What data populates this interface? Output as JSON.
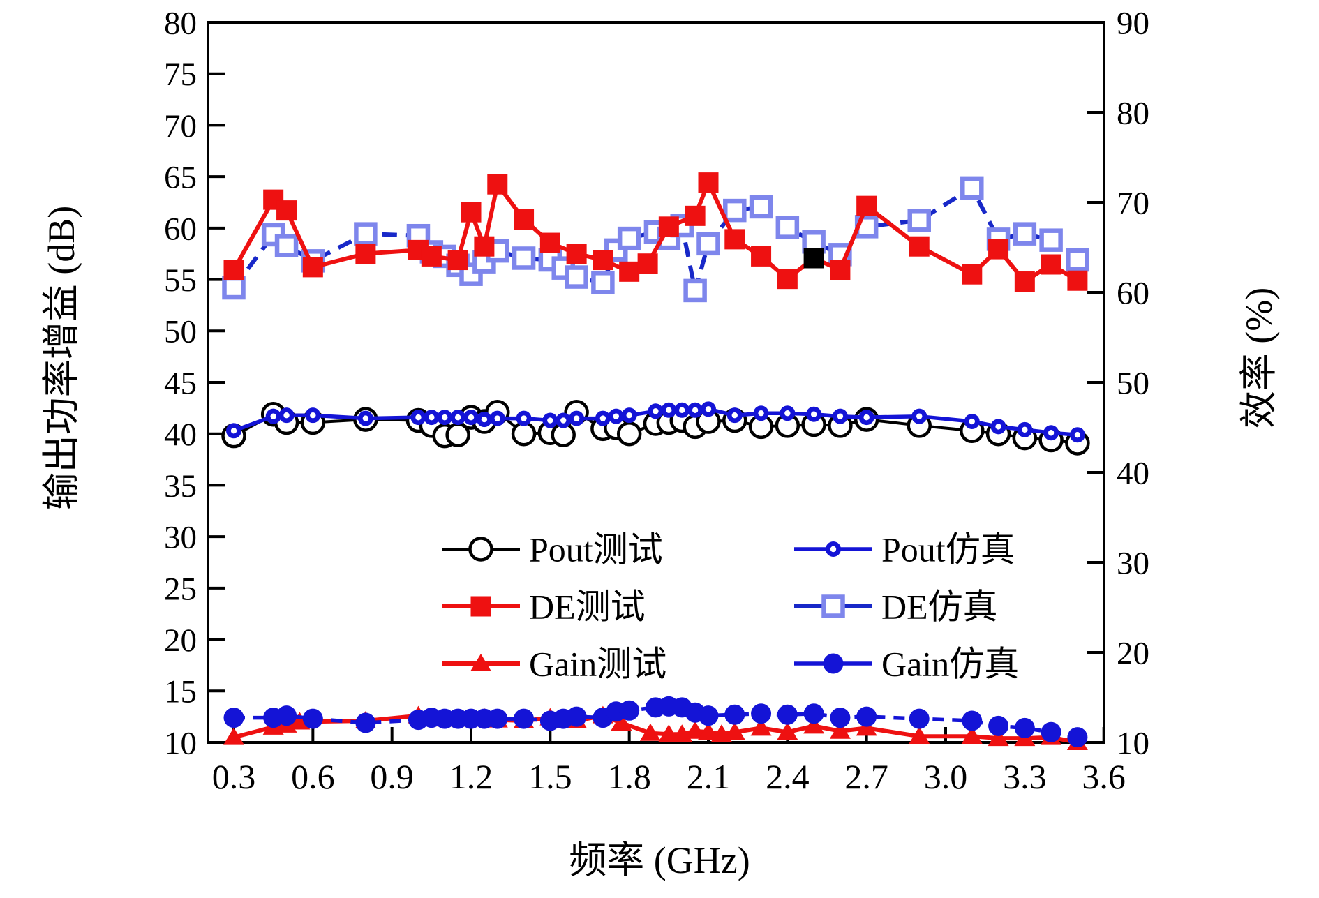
{
  "figure": {
    "xlabel": "频率 (GHz)",
    "ylabel_left": "输出功率增益 (dB)",
    "ylabel_right": "效率 (%)"
  },
  "chart_data": {
    "type": "line",
    "title": "",
    "xlabel": "频率 (GHz)",
    "ylabel_left": "输出功率增益 (dB)",
    "ylabel_right": "效率 (%)",
    "x_range": [
      0.2,
      3.62
    ],
    "x_ticks": [
      0.3,
      0.6,
      0.9,
      1.2,
      1.5,
      1.8,
      2.1,
      2.4,
      2.7,
      3.0,
      3.3,
      3.6
    ],
    "y_left_range": [
      10,
      80
    ],
    "y_left_ticks": [
      10,
      15,
      20,
      25,
      30,
      35,
      40,
      45,
      50,
      55,
      60,
      65,
      70,
      75,
      80
    ],
    "y_right_range": [
      10,
      90
    ],
    "y_right_ticks": [
      10,
      20,
      30,
      40,
      50,
      60,
      70,
      80,
      90
    ],
    "grid": false,
    "legend_position": "inside-lower-center-two-columns",
    "colors": {
      "red": "#ee1111",
      "blue": "#1414d6",
      "navy_dashed": "#1828c8",
      "light_blue_square": "#7e86ec",
      "black": "#000000",
      "anomaly_black_square": "#000000"
    },
    "series": [
      {
        "key": "pout-test",
        "name": "Pout测试",
        "axis": "left",
        "color": "#000000",
        "line": "solid",
        "marker": "open-circle",
        "points": [
          [
            0.3,
            39.8
          ],
          [
            0.45,
            41.9
          ],
          [
            0.5,
            41.1
          ],
          [
            0.6,
            41.1
          ],
          [
            0.8,
            41.4
          ],
          [
            1.0,
            41.3
          ],
          [
            1.05,
            40.8
          ],
          [
            1.1,
            39.8
          ],
          [
            1.15,
            39.9
          ],
          [
            1.2,
            41.6
          ],
          [
            1.25,
            41.2
          ],
          [
            1.3,
            42.1
          ],
          [
            1.4,
            40.0
          ],
          [
            1.5,
            40.1
          ],
          [
            1.55,
            39.9
          ],
          [
            1.6,
            42.1
          ],
          [
            1.7,
            40.5
          ],
          [
            1.75,
            40.6
          ],
          [
            1.8,
            40.0
          ],
          [
            1.9,
            41.0
          ],
          [
            1.95,
            41.1
          ],
          [
            2.0,
            41.3
          ],
          [
            2.05,
            40.7
          ],
          [
            2.1,
            41.2
          ],
          [
            2.2,
            41.3
          ],
          [
            2.3,
            40.7
          ],
          [
            2.4,
            40.8
          ],
          [
            2.5,
            40.9
          ],
          [
            2.6,
            40.8
          ],
          [
            2.7,
            41.4
          ],
          [
            2.9,
            40.8
          ],
          [
            3.1,
            40.3
          ],
          [
            3.2,
            40.0
          ],
          [
            3.3,
            39.6
          ],
          [
            3.4,
            39.4
          ],
          [
            3.5,
            39.1
          ]
        ]
      },
      {
        "key": "pout-sim",
        "name": "Pout仿真",
        "axis": "left",
        "color": "#1414d6",
        "line": "solid",
        "marker": "dot-circle",
        "points": [
          [
            0.3,
            40.3
          ],
          [
            0.45,
            41.7
          ],
          [
            0.5,
            41.8
          ],
          [
            0.6,
            41.8
          ],
          [
            0.8,
            41.5
          ],
          [
            1.0,
            41.6
          ],
          [
            1.05,
            41.6
          ],
          [
            1.1,
            41.6
          ],
          [
            1.15,
            41.6
          ],
          [
            1.2,
            41.6
          ],
          [
            1.25,
            41.4
          ],
          [
            1.3,
            41.5
          ],
          [
            1.4,
            41.5
          ],
          [
            1.5,
            41.3
          ],
          [
            1.55,
            41.3
          ],
          [
            1.6,
            41.5
          ],
          [
            1.7,
            41.5
          ],
          [
            1.75,
            41.7
          ],
          [
            1.8,
            41.8
          ],
          [
            1.9,
            42.2
          ],
          [
            1.95,
            42.3
          ],
          [
            2.0,
            42.3
          ],
          [
            2.05,
            42.3
          ],
          [
            2.1,
            42.4
          ],
          [
            2.2,
            41.8
          ],
          [
            2.3,
            42.0
          ],
          [
            2.4,
            42.0
          ],
          [
            2.5,
            41.9
          ],
          [
            2.6,
            41.7
          ],
          [
            2.7,
            41.6
          ],
          [
            2.9,
            41.7
          ],
          [
            3.1,
            41.2
          ],
          [
            3.2,
            40.7
          ],
          [
            3.3,
            40.4
          ],
          [
            3.4,
            40.1
          ],
          [
            3.5,
            39.9
          ]
        ]
      },
      {
        "key": "de-test",
        "name": "DE测试",
        "axis": "right",
        "color": "#ee1111",
        "line": "solid",
        "marker": "filled-square",
        "points": [
          [
            0.3,
            62.5
          ],
          [
            0.45,
            70.3
          ],
          [
            0.5,
            69.1
          ],
          [
            0.6,
            62.8
          ],
          [
            0.8,
            64.3
          ],
          [
            1.0,
            64.7
          ],
          [
            1.05,
            64.0
          ],
          [
            1.15,
            63.6
          ],
          [
            1.2,
            68.9
          ],
          [
            1.25,
            65.1
          ],
          [
            1.3,
            72.0
          ],
          [
            1.4,
            68.1
          ],
          [
            1.5,
            65.5
          ],
          [
            1.6,
            64.3
          ],
          [
            1.7,
            63.6
          ],
          [
            1.8,
            62.3
          ],
          [
            1.87,
            63.2
          ],
          [
            1.95,
            67.3
          ],
          [
            2.05,
            68.5
          ],
          [
            2.1,
            72.2
          ],
          [
            2.2,
            65.9
          ],
          [
            2.3,
            64.0
          ],
          [
            2.4,
            61.5
          ],
          [
            2.5,
            63.8
          ],
          [
            2.6,
            62.5
          ],
          [
            2.7,
            69.6
          ],
          [
            2.9,
            65.1
          ],
          [
            3.1,
            62.0
          ],
          [
            3.2,
            64.8
          ],
          [
            3.3,
            61.2
          ],
          [
            3.4,
            63.1
          ],
          [
            3.5,
            61.3
          ]
        ]
      },
      {
        "key": "de-sim",
        "name": "DE仿真",
        "axis": "right",
        "color": "#1828c8",
        "marker_color": "#7e86ec",
        "line": "dashed",
        "marker": "open-square",
        "points": [
          [
            0.3,
            60.5
          ],
          [
            0.45,
            66.4
          ],
          [
            0.5,
            65.2
          ],
          [
            0.6,
            63.5
          ],
          [
            0.8,
            66.5
          ],
          [
            1.0,
            66.3
          ],
          [
            1.05,
            64.5
          ],
          [
            1.1,
            64.0
          ],
          [
            1.15,
            63.0
          ],
          [
            1.2,
            62.0
          ],
          [
            1.25,
            63.4
          ],
          [
            1.3,
            64.6
          ],
          [
            1.4,
            63.8
          ],
          [
            1.5,
            63.6
          ],
          [
            1.55,
            62.7
          ],
          [
            1.6,
            61.7
          ],
          [
            1.7,
            61.1
          ],
          [
            1.75,
            64.7
          ],
          [
            1.8,
            66.0
          ],
          [
            1.9,
            66.7
          ],
          [
            1.95,
            66.0
          ],
          [
            2.0,
            67.4
          ],
          [
            2.05,
            60.2
          ],
          [
            2.1,
            65.4
          ],
          [
            2.2,
            69.1
          ],
          [
            2.3,
            69.5
          ],
          [
            2.4,
            67.2
          ],
          [
            2.5,
            65.6
          ],
          [
            2.6,
            64.2
          ],
          [
            2.7,
            67.3
          ],
          [
            2.9,
            68.0
          ],
          [
            3.1,
            71.6
          ],
          [
            3.2,
            65.9
          ],
          [
            3.3,
            66.5
          ],
          [
            3.4,
            65.8
          ],
          [
            3.5,
            63.6
          ]
        ]
      },
      {
        "key": "gain-test",
        "name": "Gain测试",
        "axis": "left",
        "color": "#ee1111",
        "line": "solid",
        "marker": "filled-triangle",
        "points": [
          [
            0.3,
            10.5
          ],
          [
            0.45,
            11.5
          ],
          [
            0.5,
            11.7
          ],
          [
            0.55,
            12.0
          ],
          [
            0.8,
            12.1
          ],
          [
            1.0,
            12.6
          ],
          [
            1.05,
            12.4
          ],
          [
            1.1,
            12.3
          ],
          [
            1.15,
            12.3
          ],
          [
            1.2,
            12.3
          ],
          [
            1.25,
            12.4
          ],
          [
            1.3,
            12.2
          ],
          [
            1.4,
            12.1
          ],
          [
            1.5,
            12.4
          ],
          [
            1.55,
            12.1
          ],
          [
            1.6,
            12.1
          ],
          [
            1.7,
            12.6
          ],
          [
            1.77,
            11.9
          ],
          [
            1.88,
            10.9
          ],
          [
            1.95,
            10.8
          ],
          [
            2.0,
            10.8
          ],
          [
            2.05,
            11.1
          ],
          [
            2.1,
            11.0
          ],
          [
            2.15,
            10.8
          ],
          [
            2.2,
            11.0
          ],
          [
            2.3,
            11.4
          ],
          [
            2.4,
            11.0
          ],
          [
            2.5,
            11.6
          ],
          [
            2.6,
            11.1
          ],
          [
            2.7,
            11.4
          ],
          [
            2.9,
            10.6
          ],
          [
            3.1,
            10.6
          ],
          [
            3.2,
            10.4
          ],
          [
            3.3,
            10.4
          ],
          [
            3.4,
            10.5
          ],
          [
            3.5,
            10.0
          ]
        ]
      },
      {
        "key": "gain-sim",
        "name": "Gain仿真",
        "axis": "left",
        "color": "#1414d6",
        "line": "dashed",
        "marker": "filled-circle",
        "points": [
          [
            0.3,
            12.4
          ],
          [
            0.45,
            12.4
          ],
          [
            0.5,
            12.6
          ],
          [
            0.6,
            12.3
          ],
          [
            0.8,
            11.9
          ],
          [
            1.0,
            12.2
          ],
          [
            1.05,
            12.4
          ],
          [
            1.1,
            12.3
          ],
          [
            1.15,
            12.3
          ],
          [
            1.2,
            12.3
          ],
          [
            1.25,
            12.3
          ],
          [
            1.3,
            12.3
          ],
          [
            1.4,
            12.3
          ],
          [
            1.5,
            12.1
          ],
          [
            1.55,
            12.3
          ],
          [
            1.6,
            12.5
          ],
          [
            1.7,
            12.4
          ],
          [
            1.75,
            13.0
          ],
          [
            1.8,
            13.1
          ],
          [
            1.9,
            13.4
          ],
          [
            1.95,
            13.5
          ],
          [
            2.0,
            13.4
          ],
          [
            2.05,
            12.9
          ],
          [
            2.1,
            12.6
          ],
          [
            2.2,
            12.7
          ],
          [
            2.3,
            12.8
          ],
          [
            2.4,
            12.7
          ],
          [
            2.5,
            12.8
          ],
          [
            2.6,
            12.4
          ],
          [
            2.7,
            12.5
          ],
          [
            2.9,
            12.3
          ],
          [
            3.1,
            12.1
          ],
          [
            3.2,
            11.6
          ],
          [
            3.3,
            11.4
          ],
          [
            3.4,
            11.0
          ],
          [
            3.5,
            10.5
          ]
        ]
      }
    ],
    "anomaly_marker": {
      "series_key": "de-test",
      "x": 2.5,
      "value": 63.8,
      "shape": "filled-square",
      "color": "#000000"
    },
    "legend_entries": [
      "Pout测试",
      "Pout仿真",
      "DE测试",
      "DE仿真",
      "Gain测试",
      "Gain仿真"
    ]
  }
}
